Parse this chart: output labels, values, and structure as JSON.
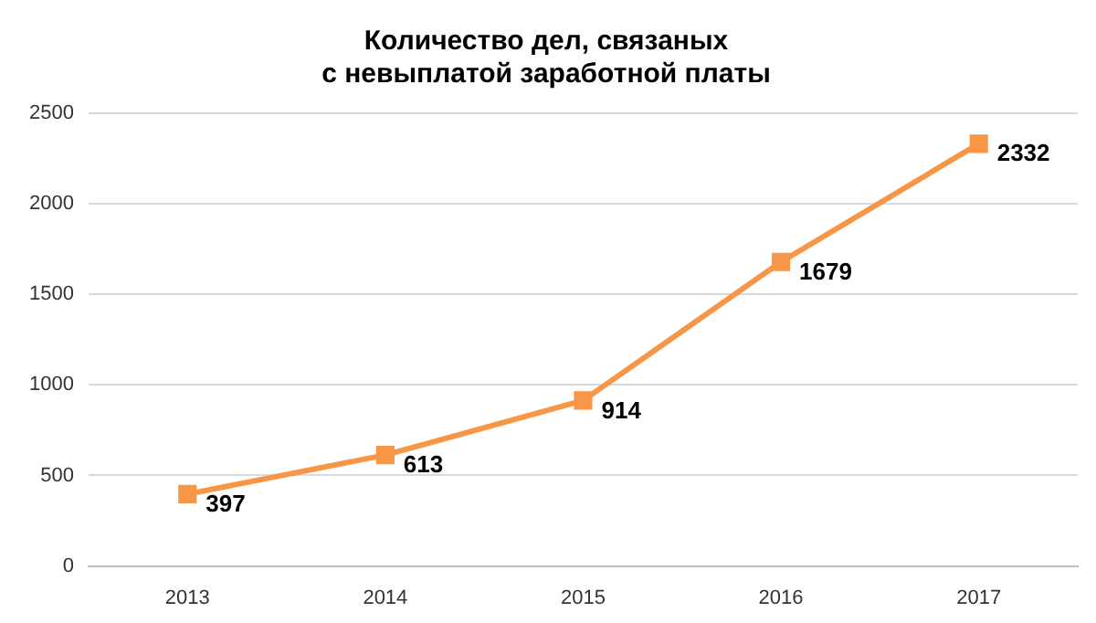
{
  "chart_data": {
    "type": "line",
    "title": "Количество дел, связаных\nс невыплатой заработной платы",
    "categories": [
      "2013",
      "2014",
      "2015",
      "2016",
      "2017"
    ],
    "series": [
      {
        "color": "#f79646",
        "values": [
          397,
          613,
          914,
          1679,
          2332
        ]
      }
    ],
    "ylim": [
      0,
      2500
    ],
    "yticks": [
      0,
      500,
      1000,
      1500,
      2000,
      2500
    ],
    "grid": "y",
    "legend": false,
    "marker": "square",
    "line_style": "solid",
    "data_labels": true
  }
}
